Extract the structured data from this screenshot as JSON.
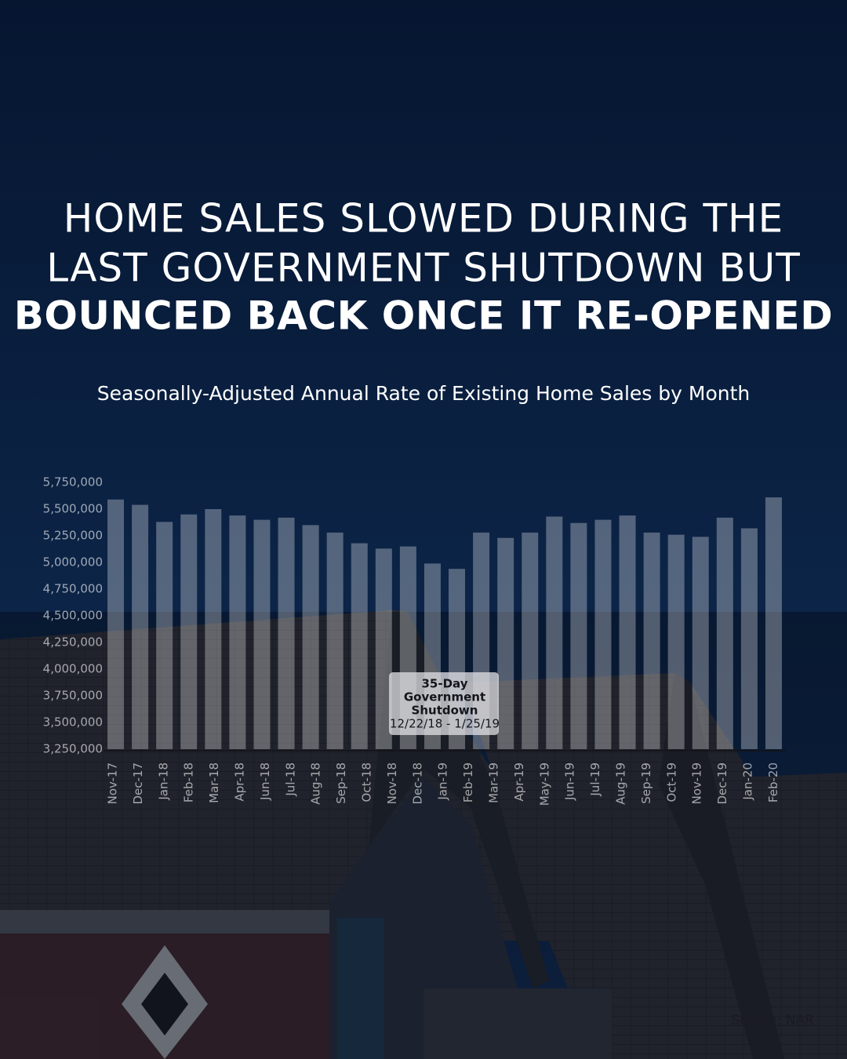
{
  "chart_data": {
    "type": "bar",
    "title_lines": [
      "HOME SALES SLOWED DURING THE",
      "LAST GOVERNMENT SHUTDOWN BUT",
      "BOUNCED BACK ONCE IT RE-OPENED"
    ],
    "subtitle": "Seasonally-Adjusted Annual Rate of Existing Home Sales by Month",
    "categories": [
      "Nov-17",
      "Dec-17",
      "Jan-18",
      "Feb-18",
      "Mar-18",
      "Apr-18",
      "Jun-18",
      "Jul-18",
      "Aug-18",
      "Sep-18",
      "Oct-18",
      "Nov-18",
      "Dec-18",
      "Jan-19",
      "Feb-19",
      "Mar-19",
      "Apr-19",
      "May-19",
      "Jun-19",
      "Jul-19",
      "Aug-19",
      "Sep-19",
      "Oct-19",
      "Nov-19",
      "Dec-19",
      "Jan-20",
      "Feb-20",
      null
    ],
    "values": [
      5590000,
      5540000,
      5380000,
      5450000,
      5500000,
      5440000,
      5400000,
      5420000,
      5350000,
      5280000,
      5180000,
      5130000,
      5150000,
      4990000,
      4940000,
      5280000,
      5230000,
      5280000,
      5430000,
      5370000,
      5400000,
      5440000,
      5280000,
      5260000,
      5240000,
      5420000,
      5320000,
      5610000
    ],
    "color": "rgba(255,255,255,0.3)",
    "ylim": [
      3250000,
      5750000
    ],
    "yticks": [
      {
        "value": 3250000,
        "label": "3,250,000"
      },
      {
        "value": 3500000,
        "label": "3,500,000"
      },
      {
        "value": 3750000,
        "label": "3,750,000"
      },
      {
        "value": 4000000,
        "label": "4,000,000"
      },
      {
        "value": 4250000,
        "label": "4,250,000"
      },
      {
        "value": 4500000,
        "label": "4,500,000"
      },
      {
        "value": 4750000,
        "label": "4,750,000"
      },
      {
        "value": 5000000,
        "label": "5,000,000"
      },
      {
        "value": 5250000,
        "label": "5,250,000"
      },
      {
        "value": 5500000,
        "label": "5,500,000"
      },
      {
        "value": 5750000,
        "label": "5,750,000"
      }
    ],
    "annotation_lines": [
      "35-Day",
      "Government",
      "Shutdown",
      "12/22/18 - 1/25/19"
    ],
    "source": "Source: NAR"
  }
}
